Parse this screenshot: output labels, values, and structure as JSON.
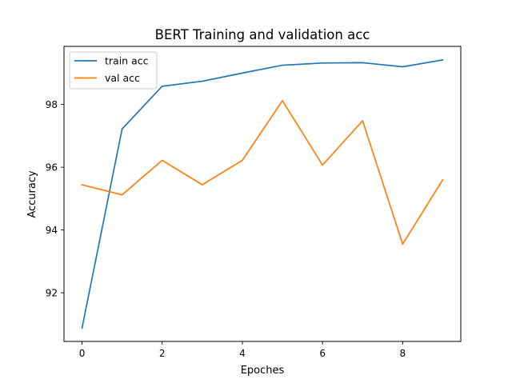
{
  "chart_data": {
    "type": "line",
    "title": "BERT Training and validation acc",
    "xlabel": "Epoches",
    "ylabel": "Accuracy",
    "xlim": [
      -0.45,
      9.45
    ],
    "ylim": [
      90.45,
      99.85
    ],
    "xticks": [
      0,
      2,
      4,
      6,
      8
    ],
    "yticks": [
      92,
      94,
      96,
      98
    ],
    "x": [
      0,
      1,
      2,
      3,
      4,
      5,
      6,
      7,
      8,
      9
    ],
    "series": [
      {
        "name": "train acc",
        "color": "#1f77b4",
        "values": [
          90.88,
          97.22,
          98.58,
          98.74,
          99.0,
          99.25,
          99.32,
          99.33,
          99.2,
          99.42
        ]
      },
      {
        "name": "val acc",
        "color": "#ff7f0e",
        "values": [
          95.44,
          95.12,
          96.22,
          95.44,
          96.22,
          98.12,
          96.07,
          97.48,
          93.55,
          95.6
        ]
      }
    ],
    "grid": false,
    "legend": "top-left"
  }
}
